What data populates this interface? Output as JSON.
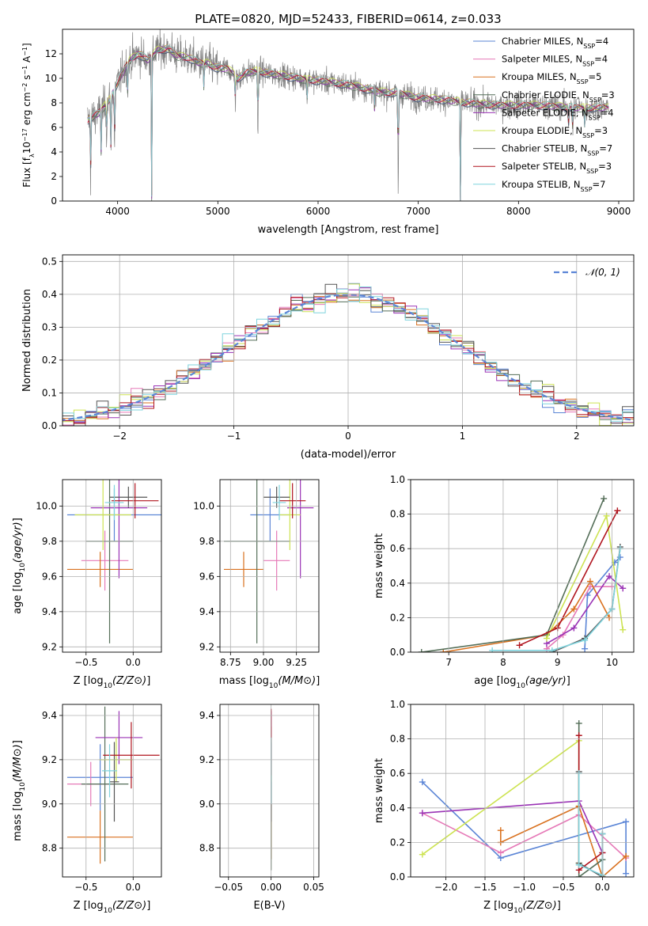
{
  "figure": {
    "title": "PLATE=0820, MJD=52433, FIBERID=0614, z=0.033"
  },
  "series_names": [
    {
      "main": "Chabrier MILES, N",
      "sub": "SSP",
      "tail": "=4",
      "color": "#5b85d6"
    },
    {
      "main": "Salpeter MILES, N",
      "sub": "SSP",
      "tail": "=4",
      "color": "#e67ab8"
    },
    {
      "main": "Kroupa MILES, N",
      "sub": "SSP",
      "tail": "=5",
      "color": "#d9711f"
    },
    {
      "main": "Chabrier ELODIE, N",
      "sub": "SSP",
      "tail": "=3",
      "color": "#546e58"
    },
    {
      "main": "Salpeter ELODIE, N",
      "sub": "SSP",
      "tail": "=4",
      "color": "#9a33b5"
    },
    {
      "main": "Kroupa ELODIE, N",
      "sub": "SSP",
      "tail": "=3",
      "color": "#cde352"
    },
    {
      "main": "Chabrier STELIB, N",
      "sub": "SSP",
      "tail": "=7",
      "color": "#555555"
    },
    {
      "main": "Salpeter STELIB, N",
      "sub": "SSP",
      "tail": "=3",
      "color": "#b0141e"
    },
    {
      "main": "Kroupa STELIB, N",
      "sub": "SSP",
      "tail": "=7",
      "color": "#7fd3dd"
    }
  ],
  "chart_data": [
    {
      "panel": "spectrum",
      "type": "line",
      "title": "PLATE=0820, MJD=52433, FIBERID=0614, z=0.033",
      "xlabel": "wavelength [Angstrom, rest frame]",
      "ylabel_parts": {
        "a": "Flux [f",
        "b": "λ",
        "c": "10",
        "d": "−17",
        "e": " erg cm",
        "f": "−2",
        "g": " s",
        "h": "−1",
        "i": " A",
        "j": "−1",
        "k": "]"
      },
      "xlim": [
        3450,
        9150
      ],
      "ylim": [
        0,
        14
      ],
      "xticks": [
        4000,
        5000,
        6000,
        7000,
        8000,
        9000
      ],
      "yticks": [
        0,
        2,
        4,
        6,
        8,
        10,
        12
      ],
      "grid": false,
      "legend_position": "top-right",
      "data_color": "#808080",
      "continuum": [
        [
          3700,
          6.6
        ],
        [
          3800,
          7.1
        ],
        [
          3900,
          8.0
        ],
        [
          4000,
          9.6
        ],
        [
          4100,
          11.3
        ],
        [
          4200,
          12.0
        ],
        [
          4300,
          11.5
        ],
        [
          4400,
          12.3
        ],
        [
          4500,
          12.4
        ],
        [
          4600,
          11.8
        ],
        [
          4700,
          11.7
        ],
        [
          4800,
          11.3
        ],
        [
          4900,
          11.2
        ],
        [
          5000,
          10.8
        ],
        [
          5100,
          10.8
        ],
        [
          5200,
          10.0
        ],
        [
          5300,
          10.5
        ],
        [
          5400,
          10.6
        ],
        [
          5500,
          10.4
        ],
        [
          5600,
          10.3
        ],
        [
          5800,
          10.0
        ],
        [
          6000,
          9.8
        ],
        [
          6200,
          9.6
        ],
        [
          6400,
          9.3
        ],
        [
          6600,
          8.9
        ],
        [
          6800,
          8.8
        ],
        [
          7000,
          8.4
        ],
        [
          7200,
          8.3
        ],
        [
          7400,
          8.1
        ],
        [
          7600,
          7.9
        ],
        [
          7800,
          7.8
        ],
        [
          8000,
          7.8
        ],
        [
          8200,
          7.8
        ],
        [
          8400,
          7.7
        ],
        [
          8600,
          7.6
        ],
        [
          8800,
          7.6
        ],
        [
          8900,
          7.6
        ]
      ],
      "absorption_features": [
        {
          "x": 3730,
          "depth": 4.8
        },
        {
          "x": 3835,
          "depth": 3.5
        },
        {
          "x": 3889,
          "depth": 3.0
        },
        {
          "x": 3934,
          "depth": 5.0
        },
        {
          "x": 3969,
          "depth": 5.5
        },
        {
          "x": 4102,
          "depth": 2.8
        },
        {
          "x": 4340,
          "depth": 11.5
        },
        {
          "x": 4861,
          "depth": 2.0
        },
        {
          "x": 5175,
          "depth": 2.5
        },
        {
          "x": 5400,
          "depth": 6.0
        },
        {
          "x": 5890,
          "depth": 1.8
        },
        {
          "x": 6563,
          "depth": 1.5
        },
        {
          "x": 6800,
          "depth": 8.5
        },
        {
          "x": 7420,
          "depth": 8.0
        },
        {
          "x": 8498,
          "depth": 1.5
        },
        {
          "x": 8542,
          "depth": 2.0
        },
        {
          "x": 8662,
          "depth": 1.8
        }
      ]
    },
    {
      "panel": "residuals",
      "type": "line",
      "xlabel": "(data-model)/error",
      "ylabel": "Normed distribution",
      "xlim": [
        -2.5,
        2.5
      ],
      "ylim": [
        0,
        0.52
      ],
      "xticks": [
        -2,
        -1,
        0,
        1,
        2
      ],
      "yticks": [
        0.0,
        0.1,
        0.2,
        0.3,
        0.4,
        0.5
      ],
      "grid": true,
      "legend_position": "top-right",
      "legend_entries": [
        "𝒩(0, 1)"
      ],
      "reference_curve": {
        "name": "𝒩(0, 1)",
        "mean": 0,
        "sigma": 1,
        "color": "#5b85d6"
      },
      "bin_width": 0.1
    },
    {
      "panel": "age-vs-Z",
      "type": "scatter",
      "xlabel": "Z [log10(Z/Z⊙)]",
      "ylabel": "age  [log10(age/yr)]",
      "xlim": [
        -0.75,
        0.3
      ],
      "ylim": [
        9.17,
        10.15
      ],
      "xticks": [
        -0.5,
        0.0
      ],
      "yticks": [
        9.2,
        9.4,
        9.6,
        9.8,
        10.0
      ],
      "grid": true,
      "points": [
        {
          "series": 0,
          "x": -0.2,
          "y": 9.95,
          "xerr": 0.5,
          "yerr": 0.15
        },
        {
          "series": 1,
          "x": -0.3,
          "y": 9.69,
          "xerr": 0.25,
          "yerr": 0.17
        },
        {
          "series": 2,
          "x": -0.35,
          "y": 9.64,
          "xerr": 0.35,
          "yerr": 0.1
        },
        {
          "series": 3,
          "x": -0.25,
          "y": 9.8,
          "xerr": 0.25,
          "yerr": 0.58
        },
        {
          "series": 4,
          "x": -0.15,
          "y": 9.99,
          "xerr": 0.3,
          "yerr": 0.4
        },
        {
          "series": 5,
          "x": -0.32,
          "y": 9.95,
          "xerr": 0.3,
          "yerr": 0.2
        },
        {
          "series": 6,
          "x": -0.05,
          "y": 10.05,
          "xerr": 0.2,
          "yerr": 0.06
        },
        {
          "series": 7,
          "x": 0.02,
          "y": 10.03,
          "xerr": 0.25,
          "yerr": 0.1
        },
        {
          "series": 8,
          "x": -0.2,
          "y": 10.02,
          "xerr": 0.1,
          "yerr": 0.1
        }
      ]
    },
    {
      "panel": "age-vs-mass",
      "type": "scatter",
      "xlabel": "mass [log10(M/M⊙)]",
      "ylabel": "",
      "xlim": [
        8.67,
        9.42
      ],
      "ylim": [
        9.17,
        10.15
      ],
      "xticks": [
        8.75,
        9.0,
        9.25
      ],
      "yticks": [
        9.2,
        9.4,
        9.6,
        9.8,
        10.0
      ],
      "grid": true,
      "points": [
        {
          "series": 0,
          "x": 9.05,
          "y": 9.95,
          "xerr": 0.15,
          "yerr": 0.15
        },
        {
          "series": 1,
          "x": 9.1,
          "y": 9.69,
          "xerr": 0.1,
          "yerr": 0.17
        },
        {
          "series": 2,
          "x": 8.85,
          "y": 9.64,
          "xerr": 0.15,
          "yerr": 0.1
        },
        {
          "series": 3,
          "x": 8.95,
          "y": 9.8,
          "xerr": 0.25,
          "yerr": 0.58
        },
        {
          "series": 4,
          "x": 9.28,
          "y": 9.99,
          "xerr": 0.1,
          "yerr": 0.4
        },
        {
          "series": 5,
          "x": 9.2,
          "y": 9.95,
          "xerr": 0.08,
          "yerr": 0.2
        },
        {
          "series": 6,
          "x": 9.1,
          "y": 10.05,
          "xerr": 0.1,
          "yerr": 0.06
        },
        {
          "series": 7,
          "x": 9.22,
          "y": 10.03,
          "xerr": 0.1,
          "yerr": 0.1
        },
        {
          "series": 8,
          "x": 9.12,
          "y": 10.02,
          "xerr": 0.05,
          "yerr": 0.1
        }
      ]
    },
    {
      "panel": "weight-vs-age",
      "type": "line",
      "xlabel": "age  [log10(age/yr)]",
      "ylabel": "mass weight",
      "xlim": [
        6.3,
        10.4
      ],
      "ylim": [
        0.0,
        1.0
      ],
      "xticks": [
        7,
        8,
        9,
        10
      ],
      "yticks": [
        0.0,
        0.2,
        0.4,
        0.6,
        0.8,
        1.0
      ],
      "grid": true,
      "series": [
        {
          "series": 0,
          "x": [
            9.5,
            9.55,
            10.05,
            10.15
          ],
          "y": [
            0.02,
            0.33,
            0.52,
            0.55
          ]
        },
        {
          "series": 1,
          "x": [
            8.8,
            9.1,
            9.6,
            10.0
          ],
          "y": [
            0.02,
            0.1,
            0.38,
            0.38
          ]
        },
        {
          "series": 2,
          "x": [
            6.9,
            8.8,
            9.3,
            9.6,
            9.95
          ],
          "y": [
            0.0,
            0.1,
            0.25,
            0.41,
            0.2
          ]
        },
        {
          "series": 3,
          "x": [
            6.5,
            8.8,
            9.85
          ],
          "y": [
            0.0,
            0.1,
            0.89
          ]
        },
        {
          "series": 4,
          "x": [
            8.8,
            9.3,
            9.95,
            10.2
          ],
          "y": [
            0.05,
            0.14,
            0.44,
            0.37
          ]
        },
        {
          "series": 5,
          "x": [
            8.8,
            9.9,
            10.2
          ],
          "y": [
            0.08,
            0.79,
            0.13
          ]
        },
        {
          "series": 6,
          "x": [
            8.9,
            9.5,
            10.0,
            10.15
          ],
          "y": [
            0.0,
            0.08,
            0.25,
            0.61
          ]
        },
        {
          "series": 7,
          "x": [
            8.3,
            9.0,
            10.1
          ],
          "y": [
            0.04,
            0.14,
            0.82
          ]
        },
        {
          "series": 8,
          "x": [
            7.8,
            8.9,
            9.5,
            10.0,
            10.15
          ],
          "y": [
            0.01,
            0.01,
            0.07,
            0.25,
            0.6
          ]
        }
      ]
    },
    {
      "panel": "mass-vs-Z",
      "type": "scatter",
      "xlabel": "Z [log10(Z/Z⊙)]",
      "ylabel": "mass [log10(M/M⊙)]",
      "xlim": [
        -0.75,
        0.3
      ],
      "ylim": [
        8.67,
        9.45
      ],
      "xticks": [
        -0.5,
        0.0
      ],
      "yticks": [
        8.8,
        9.0,
        9.2,
        9.4
      ],
      "grid": true,
      "points": [
        {
          "series": 0,
          "x": -0.35,
          "y": 9.12,
          "xerr": 0.35,
          "yerr": 0.15
        },
        {
          "series": 1,
          "x": -0.45,
          "y": 9.09,
          "xerr": 0.25,
          "yerr": 0.1
        },
        {
          "series": 2,
          "x": -0.35,
          "y": 8.85,
          "xerr": 0.35,
          "yerr": 0.12
        },
        {
          "series": 3,
          "x": -0.3,
          "y": 9.09,
          "xerr": 0.25,
          "yerr": 0.35
        },
        {
          "series": 4,
          "x": -0.15,
          "y": 9.3,
          "xerr": 0.25,
          "yerr": 0.12
        },
        {
          "series": 5,
          "x": -0.18,
          "y": 9.2,
          "xerr": 0.18,
          "yerr": 0.1
        },
        {
          "series": 6,
          "x": -0.2,
          "y": 9.1,
          "xerr": 0.05,
          "yerr": 0.18
        },
        {
          "series": 7,
          "x": -0.02,
          "y": 9.22,
          "xerr": 0.3,
          "yerr": 0.15
        },
        {
          "series": 8,
          "x": -0.25,
          "y": 9.15,
          "xerr": 0.08,
          "yerr": 0.12
        }
      ]
    },
    {
      "panel": "mass-vs-EBV",
      "type": "scatter",
      "xlabel": "E(B-V)",
      "ylabel": "",
      "xlim": [
        -0.06,
        0.056
      ],
      "ylim": [
        8.67,
        9.45
      ],
      "xticks": [
        -0.05,
        0.0,
        0.05
      ],
      "yticks": [
        8.8,
        9.0,
        9.2,
        9.4
      ],
      "grid": true,
      "points": [
        {
          "series": 0,
          "x": 0.0,
          "y": 9.12,
          "xerr": 0.0,
          "yerr": 0.15
        },
        {
          "series": 1,
          "x": 0.0,
          "y": 9.09,
          "xerr": 0.0,
          "yerr": 0.1
        },
        {
          "series": 2,
          "x": 0.0,
          "y": 9.05,
          "xerr": 0.0,
          "yerr": 0.3
        },
        {
          "series": 3,
          "x": 0.0,
          "y": 9.0,
          "xerr": 0.0,
          "yerr": 0.3
        },
        {
          "series": 4,
          "x": 0.0,
          "y": 9.3,
          "xerr": 0.0,
          "yerr": 0.12
        },
        {
          "series": 5,
          "x": 0.0,
          "y": 9.2,
          "xerr": 0.0,
          "yerr": 0.1
        },
        {
          "series": 6,
          "x": 0.0,
          "y": 9.1,
          "xerr": 0.0,
          "yerr": 0.18
        },
        {
          "series": 7,
          "x": 0.0,
          "y": 9.28,
          "xerr": 0.0,
          "yerr": 0.15
        },
        {
          "series": 8,
          "x": 0.0,
          "y": 9.15,
          "xerr": 0.0,
          "yerr": 0.15
        }
      ]
    },
    {
      "panel": "weight-vs-Z",
      "type": "line",
      "xlabel": "Z [log10(Z/Z⊙)]",
      "ylabel": "mass weight",
      "xlim": [
        -2.45,
        0.4
      ],
      "ylim": [
        0.0,
        1.0
      ],
      "xticks": [
        -2.0,
        -1.5,
        -1.0,
        -0.5,
        0.0
      ],
      "yticks": [
        0.0,
        0.2,
        0.4,
        0.6,
        0.8,
        1.0
      ],
      "grid": true,
      "series": [
        {
          "series": 0,
          "x": [
            -2.3,
            -1.3,
            0.3,
            0.3
          ],
          "y": [
            0.55,
            0.11,
            0.32,
            0.02
          ]
        },
        {
          "series": 1,
          "x": [
            -2.3,
            -1.3,
            -0.3,
            0.3
          ],
          "y": [
            0.37,
            0.14,
            0.36,
            0.11
          ]
        },
        {
          "series": 2,
          "x": [
            -1.3,
            -1.3,
            -0.3,
            0.0,
            0.3
          ],
          "y": [
            0.27,
            0.2,
            0.41,
            0.0,
            0.12
          ]
        },
        {
          "series": 3,
          "x": [
            -0.3,
            -0.3,
            0.0
          ],
          "y": [
            0.89,
            0.0,
            0.1
          ]
        },
        {
          "series": 4,
          "x": [
            -2.3,
            -0.3,
            0.0
          ],
          "y": [
            0.37,
            0.44,
            0.14
          ]
        },
        {
          "series": 5,
          "x": [
            -2.3,
            -0.3,
            -0.3
          ],
          "y": [
            0.13,
            0.79,
            0.08
          ]
        },
        {
          "series": 6,
          "x": [
            -0.3,
            -0.3,
            0.0,
            0.0
          ],
          "y": [
            0.61,
            0.08,
            0.0,
            0.25
          ]
        },
        {
          "series": 7,
          "x": [
            -0.3,
            -0.3,
            0.0
          ],
          "y": [
            0.82,
            0.04,
            0.14
          ]
        },
        {
          "series": 8,
          "x": [
            -0.3,
            -0.3,
            0.0,
            0.0
          ],
          "y": [
            0.6,
            0.07,
            0.01,
            0.25
          ]
        }
      ]
    }
  ]
}
